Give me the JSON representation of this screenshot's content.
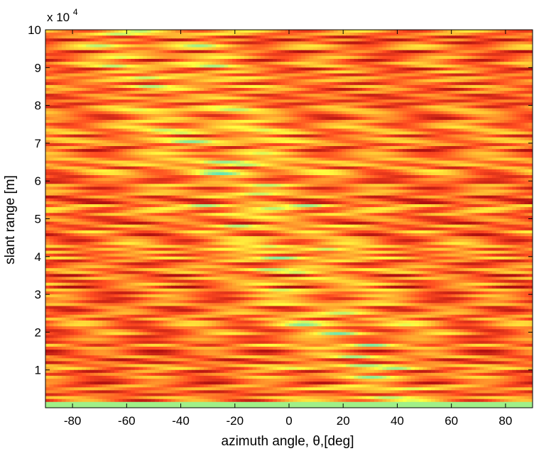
{
  "chart_data": {
    "type": "heatmap",
    "title": "",
    "xlabel": "azimuth angle,  θ,[deg]",
    "ylabel": "slant range [m]",
    "y_exponent_label": "x 10",
    "y_exponent_power": "4",
    "xlim": [
      -90,
      90
    ],
    "ylim": [
      0,
      100000
    ],
    "x_ticks": [
      -80,
      -60,
      -40,
      -20,
      0,
      20,
      40,
      60,
      80
    ],
    "x_tick_labels": [
      "-80",
      "-60",
      "-40",
      "-20",
      "0",
      "20",
      "40",
      "60",
      "80"
    ],
    "y_ticks": [
      10000,
      20000,
      30000,
      40000,
      50000,
      60000,
      70000,
      80000,
      90000,
      100000
    ],
    "y_tick_labels": [
      "1",
      "2",
      "3",
      "4",
      "5",
      "6",
      "7",
      "8",
      "9",
      "10"
    ],
    "grid": false,
    "colormap": [
      "#00a0ff",
      "#40e0d0",
      "#ffff40",
      "#ffb030",
      "#ff4a20",
      "#b01010"
    ]
  }
}
